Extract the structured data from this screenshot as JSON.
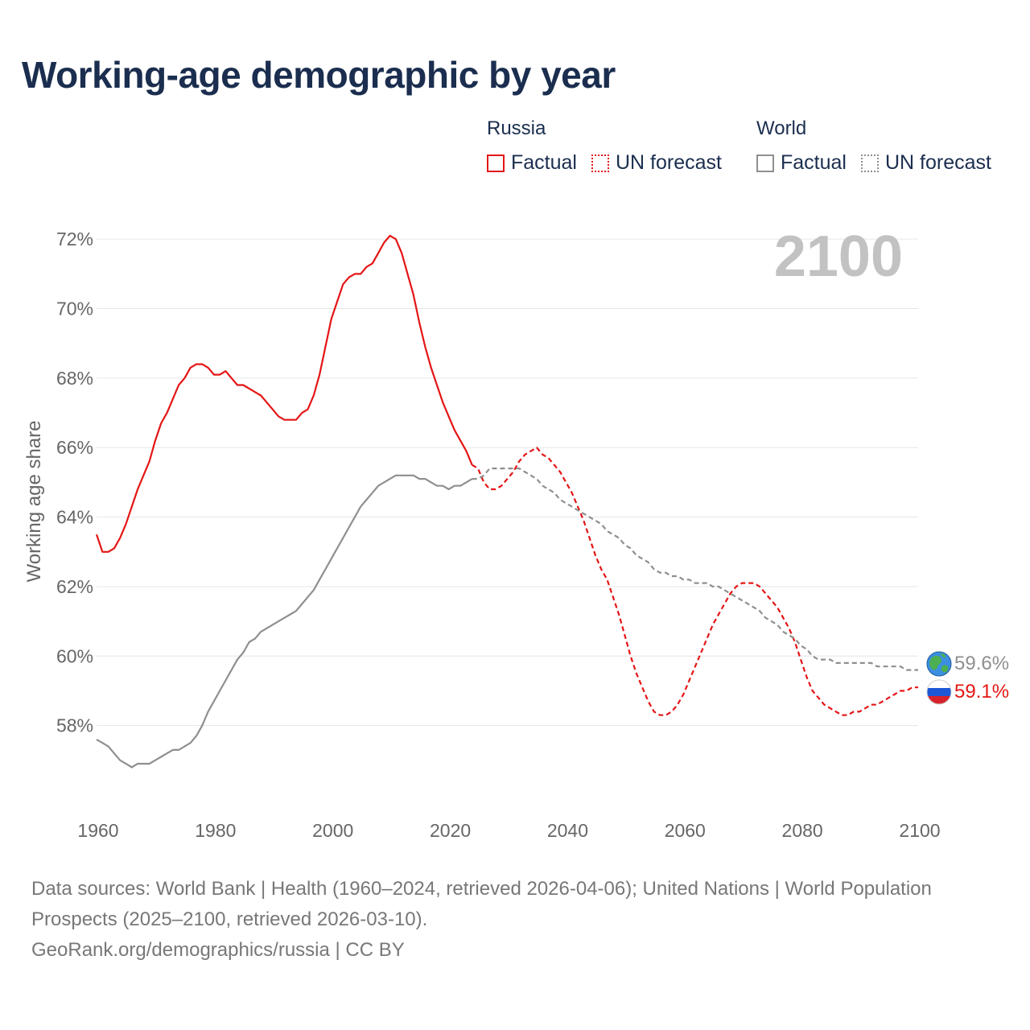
{
  "title": "Working-age demographic by year",
  "legend": {
    "russia": {
      "title": "Russia",
      "factual": "Factual",
      "forecast": "UN forecast"
    },
    "world": {
      "title": "World",
      "factual": "Factual",
      "forecast": "UN forecast"
    }
  },
  "year_display": "2100",
  "footer": {
    "sources": "Data sources: World Bank | Health (1960–2024, retrieved 2026-04-06); United Nations | World Population Prospects (2025–2100, retrieved 2026-03-10).",
    "attribution": "GeoRank.org/demographics/russia | CC BY"
  },
  "end_labels": {
    "world": "59.6%",
    "russia": "59.1%"
  },
  "icons": {
    "world": "globe-icon",
    "russia": "russia-flag-icon"
  },
  "colors": {
    "russia": "#e41515",
    "world": "#8f8f8f",
    "title": "#1b2e4f",
    "grid": "#e6e6e6"
  },
  "chart_data": {
    "type": "line",
    "ylabel": "Working age share",
    "xlabel": "",
    "xlim": [
      1960,
      2100
    ],
    "ylim": [
      56,
      73
    ],
    "x_ticks": [
      1960,
      1980,
      2000,
      2020,
      2040,
      2060,
      2080,
      2100
    ],
    "y_ticks": [
      58,
      60,
      62,
      64,
      66,
      68,
      70,
      72
    ],
    "y_tick_labels": [
      "58%",
      "60%",
      "62%",
      "64%",
      "66%",
      "68%",
      "70%",
      "72%"
    ],
    "x_tick_labels": [
      "1960",
      "1980",
      "2000",
      "2020",
      "2040",
      "2060",
      "2080",
      "2100"
    ],
    "series": [
      {
        "name": "Russia",
        "segment": "Factual",
        "style": "solid",
        "points": [
          [
            1960,
            63.5
          ],
          [
            1961,
            63.0
          ],
          [
            1962,
            63.0
          ],
          [
            1963,
            63.1
          ],
          [
            1964,
            63.4
          ],
          [
            1965,
            63.8
          ],
          [
            1966,
            64.3
          ],
          [
            1967,
            64.8
          ],
          [
            1968,
            65.2
          ],
          [
            1969,
            65.6
          ],
          [
            1970,
            66.2
          ],
          [
            1971,
            66.7
          ],
          [
            1972,
            67.0
          ],
          [
            1973,
            67.4
          ],
          [
            1974,
            67.8
          ],
          [
            1975,
            68.0
          ],
          [
            1976,
            68.3
          ],
          [
            1977,
            68.4
          ],
          [
            1978,
            68.4
          ],
          [
            1979,
            68.3
          ],
          [
            1980,
            68.1
          ],
          [
            1981,
            68.1
          ],
          [
            1982,
            68.2
          ],
          [
            1983,
            68.0
          ],
          [
            1984,
            67.8
          ],
          [
            1985,
            67.8
          ],
          [
            1986,
            67.7
          ],
          [
            1987,
            67.6
          ],
          [
            1988,
            67.5
          ],
          [
            1989,
            67.3
          ],
          [
            1990,
            67.1
          ],
          [
            1991,
            66.9
          ],
          [
            1992,
            66.8
          ],
          [
            1993,
            66.8
          ],
          [
            1994,
            66.8
          ],
          [
            1995,
            67.0
          ],
          [
            1996,
            67.1
          ],
          [
            1997,
            67.5
          ],
          [
            1998,
            68.1
          ],
          [
            1999,
            68.9
          ],
          [
            2000,
            69.7
          ],
          [
            2001,
            70.2
          ],
          [
            2002,
            70.7
          ],
          [
            2003,
            70.9
          ],
          [
            2004,
            71.0
          ],
          [
            2005,
            71.0
          ],
          [
            2006,
            71.2
          ],
          [
            2007,
            71.3
          ],
          [
            2008,
            71.6
          ],
          [
            2009,
            71.9
          ],
          [
            2010,
            72.1
          ],
          [
            2011,
            72.0
          ],
          [
            2012,
            71.6
          ],
          [
            2013,
            71.0
          ],
          [
            2014,
            70.4
          ],
          [
            2015,
            69.6
          ],
          [
            2016,
            68.9
          ],
          [
            2017,
            68.3
          ],
          [
            2018,
            67.8
          ],
          [
            2019,
            67.3
          ],
          [
            2020,
            66.9
          ],
          [
            2021,
            66.5
          ],
          [
            2022,
            66.2
          ],
          [
            2023,
            65.9
          ],
          [
            2024,
            65.5
          ]
        ]
      },
      {
        "name": "Russia",
        "segment": "UN forecast",
        "style": "dashed",
        "points": [
          [
            2024,
            65.5
          ],
          [
            2025,
            65.4
          ],
          [
            2026,
            65.0
          ],
          [
            2027,
            64.8
          ],
          [
            2028,
            64.8
          ],
          [
            2029,
            64.9
          ],
          [
            2030,
            65.1
          ],
          [
            2031,
            65.3
          ],
          [
            2032,
            65.6
          ],
          [
            2033,
            65.8
          ],
          [
            2034,
            65.9
          ],
          [
            2035,
            66.0
          ],
          [
            2036,
            65.8
          ],
          [
            2037,
            65.7
          ],
          [
            2038,
            65.5
          ],
          [
            2039,
            65.3
          ],
          [
            2040,
            65.0
          ],
          [
            2041,
            64.7
          ],
          [
            2042,
            64.3
          ],
          [
            2043,
            63.9
          ],
          [
            2044,
            63.4
          ],
          [
            2045,
            62.9
          ],
          [
            2046,
            62.5
          ],
          [
            2047,
            62.2
          ],
          [
            2048,
            61.7
          ],
          [
            2049,
            61.2
          ],
          [
            2050,
            60.6
          ],
          [
            2051,
            60.0
          ],
          [
            2052,
            59.5
          ],
          [
            2053,
            59.1
          ],
          [
            2054,
            58.7
          ],
          [
            2055,
            58.4
          ],
          [
            2056,
            58.3
          ],
          [
            2057,
            58.3
          ],
          [
            2058,
            58.4
          ],
          [
            2059,
            58.6
          ],
          [
            2060,
            58.9
          ],
          [
            2061,
            59.3
          ],
          [
            2062,
            59.7
          ],
          [
            2063,
            60.1
          ],
          [
            2064,
            60.5
          ],
          [
            2065,
            60.9
          ],
          [
            2066,
            61.2
          ],
          [
            2067,
            61.5
          ],
          [
            2068,
            61.8
          ],
          [
            2069,
            62.0
          ],
          [
            2070,
            62.1
          ],
          [
            2071,
            62.1
          ],
          [
            2072,
            62.1
          ],
          [
            2073,
            62.0
          ],
          [
            2074,
            61.8
          ],
          [
            2075,
            61.6
          ],
          [
            2076,
            61.4
          ],
          [
            2077,
            61.1
          ],
          [
            2078,
            60.8
          ],
          [
            2079,
            60.4
          ],
          [
            2080,
            59.9
          ],
          [
            2081,
            59.4
          ],
          [
            2082,
            59.0
          ],
          [
            2083,
            58.8
          ],
          [
            2084,
            58.6
          ],
          [
            2085,
            58.5
          ],
          [
            2086,
            58.4
          ],
          [
            2087,
            58.3
          ],
          [
            2088,
            58.3
          ],
          [
            2089,
            58.4
          ],
          [
            2090,
            58.4
          ],
          [
            2091,
            58.5
          ],
          [
            2092,
            58.6
          ],
          [
            2093,
            58.6
          ],
          [
            2094,
            58.7
          ],
          [
            2095,
            58.8
          ],
          [
            2096,
            58.9
          ],
          [
            2097,
            59.0
          ],
          [
            2098,
            59.0
          ],
          [
            2099,
            59.1
          ],
          [
            2100,
            59.1
          ]
        ]
      },
      {
        "name": "World",
        "segment": "Factual",
        "style": "solid",
        "points": [
          [
            1960,
            57.6
          ],
          [
            1961,
            57.5
          ],
          [
            1962,
            57.4
          ],
          [
            1963,
            57.2
          ],
          [
            1964,
            57.0
          ],
          [
            1965,
            56.9
          ],
          [
            1966,
            56.8
          ],
          [
            1967,
            56.9
          ],
          [
            1968,
            56.9
          ],
          [
            1969,
            56.9
          ],
          [
            1970,
            57.0
          ],
          [
            1971,
            57.1
          ],
          [
            1972,
            57.2
          ],
          [
            1973,
            57.3
          ],
          [
            1974,
            57.3
          ],
          [
            1975,
            57.4
          ],
          [
            1976,
            57.5
          ],
          [
            1977,
            57.7
          ],
          [
            1978,
            58.0
          ],
          [
            1979,
            58.4
          ],
          [
            1980,
            58.7
          ],
          [
            1981,
            59.0
          ],
          [
            1982,
            59.3
          ],
          [
            1983,
            59.6
          ],
          [
            1984,
            59.9
          ],
          [
            1985,
            60.1
          ],
          [
            1986,
            60.4
          ],
          [
            1987,
            60.5
          ],
          [
            1988,
            60.7
          ],
          [
            1989,
            60.8
          ],
          [
            1990,
            60.9
          ],
          [
            1991,
            61.0
          ],
          [
            1992,
            61.1
          ],
          [
            1993,
            61.2
          ],
          [
            1994,
            61.3
          ],
          [
            1995,
            61.5
          ],
          [
            1996,
            61.7
          ],
          [
            1997,
            61.9
          ],
          [
            1998,
            62.2
          ],
          [
            1999,
            62.5
          ],
          [
            2000,
            62.8
          ],
          [
            2001,
            63.1
          ],
          [
            2002,
            63.4
          ],
          [
            2003,
            63.7
          ],
          [
            2004,
            64.0
          ],
          [
            2005,
            64.3
          ],
          [
            2006,
            64.5
          ],
          [
            2007,
            64.7
          ],
          [
            2008,
            64.9
          ],
          [
            2009,
            65.0
          ],
          [
            2010,
            65.1
          ],
          [
            2011,
            65.2
          ],
          [
            2012,
            65.2
          ],
          [
            2013,
            65.2
          ],
          [
            2014,
            65.2
          ],
          [
            2015,
            65.1
          ],
          [
            2016,
            65.1
          ],
          [
            2017,
            65.0
          ],
          [
            2018,
            64.9
          ],
          [
            2019,
            64.9
          ],
          [
            2020,
            64.8
          ],
          [
            2021,
            64.9
          ],
          [
            2022,
            64.9
          ],
          [
            2023,
            65.0
          ],
          [
            2024,
            65.1
          ]
        ]
      },
      {
        "name": "World",
        "segment": "UN forecast",
        "style": "dashed",
        "points": [
          [
            2024,
            65.1
          ],
          [
            2025,
            65.1
          ],
          [
            2026,
            65.2
          ],
          [
            2027,
            65.4
          ],
          [
            2028,
            65.4
          ],
          [
            2029,
            65.4
          ],
          [
            2030,
            65.4
          ],
          [
            2031,
            65.4
          ],
          [
            2032,
            65.4
          ],
          [
            2033,
            65.3
          ],
          [
            2034,
            65.2
          ],
          [
            2035,
            65.1
          ],
          [
            2036,
            64.9
          ],
          [
            2037,
            64.8
          ],
          [
            2038,
            64.7
          ],
          [
            2039,
            64.5
          ],
          [
            2040,
            64.4
          ],
          [
            2041,
            64.3
          ],
          [
            2042,
            64.2
          ],
          [
            2043,
            64.1
          ],
          [
            2044,
            64.0
          ],
          [
            2045,
            63.9
          ],
          [
            2046,
            63.8
          ],
          [
            2047,
            63.6
          ],
          [
            2048,
            63.5
          ],
          [
            2049,
            63.4
          ],
          [
            2050,
            63.2
          ],
          [
            2051,
            63.1
          ],
          [
            2052,
            62.9
          ],
          [
            2053,
            62.8
          ],
          [
            2054,
            62.7
          ],
          [
            2055,
            62.5
          ],
          [
            2056,
            62.4
          ],
          [
            2057,
            62.4
          ],
          [
            2058,
            62.3
          ],
          [
            2059,
            62.3
          ],
          [
            2060,
            62.2
          ],
          [
            2061,
            62.2
          ],
          [
            2062,
            62.1
          ],
          [
            2063,
            62.1
          ],
          [
            2064,
            62.1
          ],
          [
            2065,
            62.0
          ],
          [
            2066,
            62.0
          ],
          [
            2067,
            61.9
          ],
          [
            2068,
            61.8
          ],
          [
            2069,
            61.7
          ],
          [
            2070,
            61.6
          ],
          [
            2071,
            61.5
          ],
          [
            2072,
            61.4
          ],
          [
            2073,
            61.3
          ],
          [
            2074,
            61.1
          ],
          [
            2075,
            61.0
          ],
          [
            2076,
            60.9
          ],
          [
            2077,
            60.7
          ],
          [
            2078,
            60.6
          ],
          [
            2079,
            60.5
          ],
          [
            2080,
            60.3
          ],
          [
            2081,
            60.2
          ],
          [
            2082,
            60.0
          ],
          [
            2083,
            59.9
          ],
          [
            2084,
            59.9
          ],
          [
            2085,
            59.9
          ],
          [
            2086,
            59.8
          ],
          [
            2087,
            59.8
          ],
          [
            2088,
            59.8
          ],
          [
            2089,
            59.8
          ],
          [
            2090,
            59.8
          ],
          [
            2091,
            59.8
          ],
          [
            2092,
            59.8
          ],
          [
            2093,
            59.7
          ],
          [
            2094,
            59.7
          ],
          [
            2095,
            59.7
          ],
          [
            2096,
            59.7
          ],
          [
            2097,
            59.7
          ],
          [
            2098,
            59.6
          ],
          [
            2099,
            59.6
          ],
          [
            2100,
            59.6
          ]
        ]
      }
    ]
  }
}
